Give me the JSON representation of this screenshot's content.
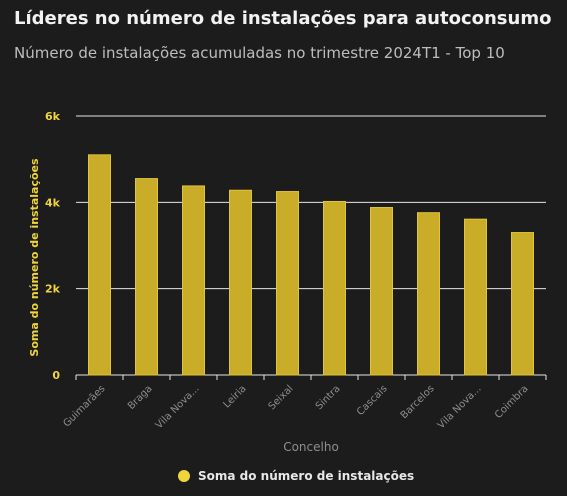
{
  "header": {
    "title": "Líderes no número de instalações para autoconsumo",
    "subtitle": "Número de instalações acumuladas no trimestre 2024T1 - Top 10"
  },
  "colors": {
    "bar": "#c9ac27",
    "bar_stroke": "#e0c53a",
    "axis_label": "#f0d43a",
    "grid": "#e6e6e6",
    "tick_text": "#8e8e8e",
    "background": "#1c1c1c"
  },
  "chart_data": {
    "type": "bar",
    "title": "Líderes no número de instalações para autoconsumo",
    "subtitle": "Número de instalações acumuladas no trimestre 2024T1 - Top 10",
    "xlabel": "Concelho",
    "ylabel": "Soma do número de instalações",
    "ylim": [
      0,
      6000
    ],
    "yticks": [
      0,
      2000,
      4000,
      6000
    ],
    "ytick_labels": [
      "0",
      "2k",
      "4k",
      "6k"
    ],
    "grid": true,
    "legend_position": "bottom",
    "categories": [
      "Guimarães",
      "Braga",
      "Vila Nova...",
      "Leiria",
      "Seixal",
      "Sintra",
      "Cascais",
      "Barcelos",
      "Vila Nova...",
      "Coimbra"
    ],
    "series": [
      {
        "name": "Soma do número de instalações",
        "values": [
          5100,
          4550,
          4380,
          4280,
          4250,
          4020,
          3880,
          3760,
          3610,
          3300
        ]
      }
    ]
  }
}
